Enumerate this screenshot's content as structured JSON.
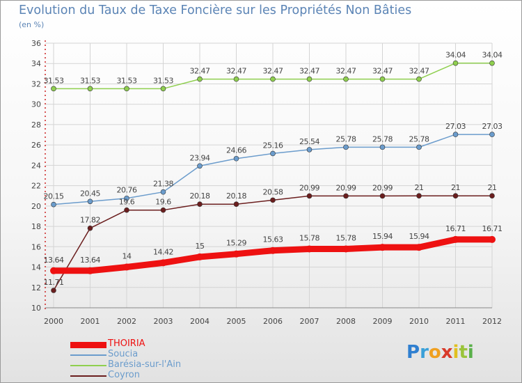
{
  "title": "Evolution du Taux de Taxe Foncière sur les Propriétés Non Bâties",
  "subtitle": "(en %)",
  "logo": {
    "letters": [
      {
        "ch": "P",
        "color": "#2f7fd0"
      },
      {
        "ch": "r",
        "color": "#3aa0d8"
      },
      {
        "ch": "o",
        "color": "#f0a020"
      },
      {
        "ch": "x",
        "color": "#d83a2a"
      },
      {
        "ch": "i",
        "color": "#e0c020"
      },
      {
        "ch": "t",
        "color": "#9ac43a"
      },
      {
        "ch": "i",
        "color": "#5ab04a"
      }
    ]
  },
  "chart_data": {
    "type": "line",
    "title": "Evolution du Taux de Taxe Foncière sur les Propriétés Non Bâties",
    "ylabel": "(en %)",
    "x": [
      "2000",
      "2001",
      "2002",
      "2003",
      "2004",
      "2005",
      "2006",
      "2007",
      "2008",
      "2009",
      "2010",
      "2011",
      "2012"
    ],
    "ylim": [
      10,
      36
    ],
    "yticks": [
      10,
      12,
      14,
      16,
      18,
      20,
      22,
      24,
      26,
      28,
      30,
      32,
      34,
      36
    ],
    "grid": true,
    "legend_position": "bottom-left",
    "series": [
      {
        "name": "Barésia-sur-l'Ain",
        "color": "#8fcf4f",
        "values": [
          31.53,
          31.53,
          31.53,
          31.53,
          32.47,
          32.47,
          32.47,
          32.47,
          32.47,
          32.47,
          32.47,
          34.04,
          34.04
        ],
        "labels": [
          "31.53",
          "31.53",
          "31.53",
          "31.53",
          "32.47",
          "32.47",
          "32.47",
          "32.47",
          "32.47",
          "32.47",
          "32.47",
          "34.04",
          "34.04"
        ]
      },
      {
        "name": "Soucia",
        "color": "#6b9ccc",
        "values": [
          20.15,
          20.45,
          20.76,
          21.38,
          23.94,
          24.66,
          25.16,
          25.54,
          25.78,
          25.78,
          25.78,
          27.03,
          27.03
        ],
        "labels": [
          "20.15",
          "20.45",
          "20.76",
          "21.38",
          "23.94",
          "24.66",
          "25.16",
          "25.54",
          "25.78",
          "25.78",
          "25.78",
          "27.03",
          "27.03"
        ]
      },
      {
        "name": "Coyron",
        "color": "#6b1e1e",
        "values": [
          11.71,
          17.82,
          19.6,
          19.6,
          20.18,
          20.18,
          20.58,
          20.99,
          20.99,
          20.99,
          21,
          21,
          21
        ],
        "labels": [
          "11.71",
          "17.82",
          "19.6",
          "19.6",
          "20.18",
          "20.18",
          "20.58",
          "20.99",
          "20.99",
          "20.99",
          "21",
          "21",
          "21"
        ]
      },
      {
        "name": "THOIRIA",
        "color": "#ee1111",
        "values": [
          13.64,
          13.64,
          14,
          14.42,
          15,
          15.29,
          15.63,
          15.78,
          15.78,
          15.94,
          15.94,
          16.71,
          16.71
        ],
        "labels": [
          "13.64",
          "13.64",
          "14",
          "14.42",
          "15",
          "15.29",
          "15.63",
          "15.78",
          "15.78",
          "15.94",
          "15.94",
          "16.71",
          "16.71"
        ]
      }
    ],
    "legend": [
      {
        "name": "THOIRIA",
        "color": "#ee1111",
        "text_color": "#ee1111"
      },
      {
        "name": "Soucia",
        "color": "#6b9ccc",
        "text_color": "#6b9ccc"
      },
      {
        "name": "Barésia-sur-l'Ain",
        "color": "#8fcf4f",
        "text_color": "#6b9ccc"
      },
      {
        "name": "Coyron",
        "color": "#6b1e1e",
        "text_color": "#6b9ccc"
      }
    ]
  }
}
